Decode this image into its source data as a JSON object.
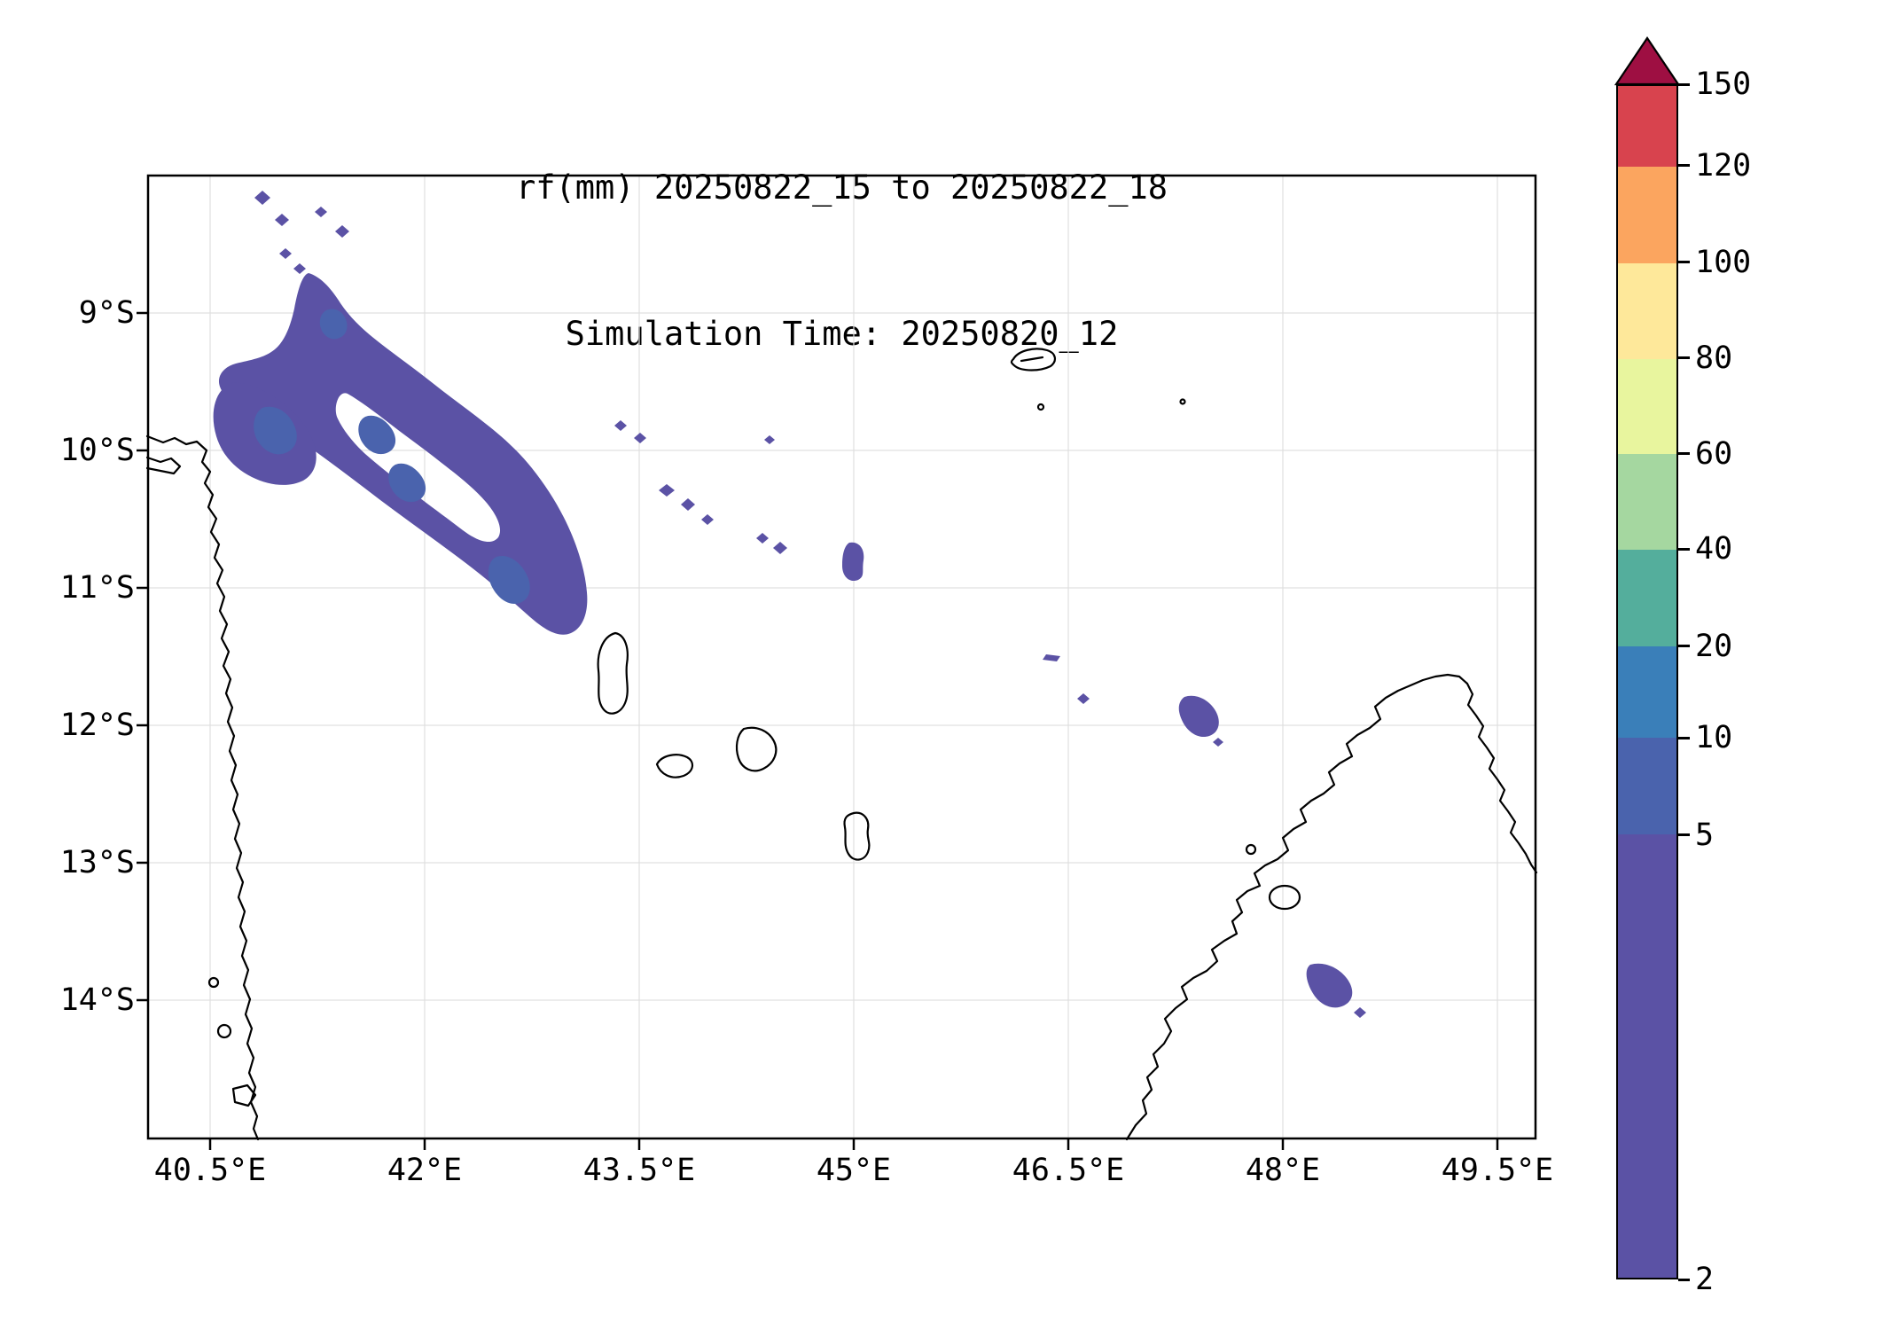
{
  "title": {
    "line1": "rf(mm) 20250822_15 to 20250822_18",
    "line2": "Simulation Time: 20250820_12"
  },
  "axes": {
    "x_ticks": [
      "40.5°E",
      "42°E",
      "43.5°E",
      "45°E",
      "46.5°E",
      "48°E",
      "49.5°E"
    ],
    "y_ticks": [
      "9°S",
      "10°S",
      "11°S",
      "12°S",
      "13°S",
      "14°S"
    ]
  },
  "colorbar": {
    "ticks": [
      "150",
      "120",
      "100",
      "80",
      "60",
      "40",
      "20",
      "10",
      "5",
      "2"
    ],
    "levels_low_to_high": [
      2,
      5,
      10,
      20,
      40,
      60,
      80,
      100,
      120,
      150
    ],
    "interval_colors_low_to_high": [
      "#5b52a5",
      "#4a63ad",
      "#3a7fb9",
      "#54ae9c",
      "#a5d7a0",
      "#e8f59e",
      "#fee89a",
      "#fba55f",
      "#d8434e"
    ],
    "over_color": "#9e0f42"
  },
  "chart_data": {
    "type": "heatmap",
    "subtype": "filled_contour_map",
    "title": "rf(mm) 20250822_15 to 20250822_18",
    "subtitle": "Simulation Time: 20250820_12",
    "variable": "rainfall accumulation rf (mm)",
    "x_axis": {
      "ticks_deg_east": [
        40.5,
        42,
        43.5,
        45,
        46.5,
        48,
        49.5
      ],
      "approx_range_deg_east": [
        40.1,
        49.8
      ]
    },
    "y_axis": {
      "ticks_deg_south": [
        9,
        10,
        11,
        12,
        13,
        14
      ],
      "approx_range_deg_south": [
        8.0,
        15.0
      ]
    },
    "contour_levels_mm": [
      2,
      5,
      10,
      20,
      40,
      60,
      80,
      100,
      120,
      150
    ],
    "colorbar_extends_above_max": true,
    "legend_position": "right vertical colorbar",
    "grid": "faint lat/lon gridlines at labeled ticks",
    "basemap": "coastlines of East Africa (left), Comoros islands (center) and northern Madagascar (right), unfilled",
    "rain_features": [
      {
        "description": "elongated NW-SE ring-shaped rain band offshore of the East African coast with embedded 5-10 mm cores",
        "approx_center": {
          "lon_e": 42.0,
          "lat_s": 10.3
        },
        "approx_extent_deg": {
          "lon": [
            41.0,
            43.2
          ],
          "lat": [
            8.3,
            11.3
          ]
        },
        "max_bin_mm": "5-10"
      },
      {
        "description": "scattered tiny cells northwest of the main band",
        "approx_center": {
          "lon_e": 41.2,
          "lat_s": 8.3
        },
        "max_bin_mm": "2-5"
      },
      {
        "description": "chain of small cells in mid-channel",
        "approx_center": {
          "lon_e": 43.9,
          "lat_s": 10.4
        },
        "max_bin_mm": "2-5"
      },
      {
        "description": "small cell",
        "approx_center": {
          "lon_e": 45.15,
          "lat_s": 10.8
        },
        "max_bin_mm": "2-5"
      },
      {
        "description": "tiny cells near 46.5°E, 11.5-11.8°S",
        "approx_center": {
          "lon_e": 46.6,
          "lat_s": 11.6
        },
        "max_bin_mm": "2-5"
      },
      {
        "description": "small cell east of 47.5°E",
        "approx_center": {
          "lon_e": 47.8,
          "lat_s": 11.9
        },
        "max_bin_mm": "2-5"
      },
      {
        "description": "cell on the northwest Madagascar coast",
        "approx_center": {
          "lon_e": 48.3,
          "lat_s": 14.0
        },
        "max_bin_mm": "2-5"
      }
    ]
  }
}
